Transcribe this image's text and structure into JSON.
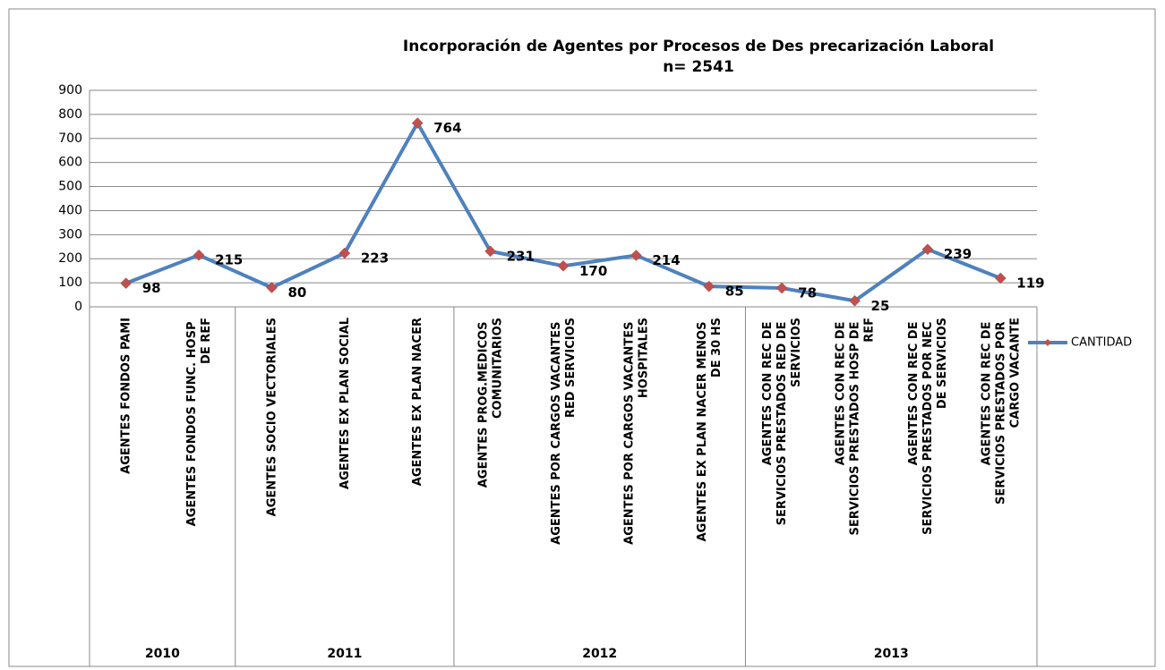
{
  "chart_data": {
    "type": "line",
    "title": "Incorporación de Agentes por Procesos de Des precarización Laboral",
    "subtitle": "n= 2541",
    "categories": [
      "AGENTES FONDOS PAMI",
      "AGENTES FONDOS FUNC. HOSP DE REF",
      "AGENTES SOCIO VECTORIALES",
      "AGENTES EX PLAN SOCIAL",
      "AGENTES EX PLAN NACER",
      "AGENTES PROG.MEDICOS COMUNITARIOS",
      "AGENTES POR CARGOS VACANTES RED SERVICIOS",
      "AGENTES POR CARGOS VACANTES HOSPITALES",
      "AGENTES EX PLAN NACER MENOS DE 30 HS",
      "AGENTES CON REC DE SERVICIOS PRESTADOS RED DE SERVICIOS",
      "AGENTES CON REC DE SERVICIOS PRESTADOS HOSP DE REF",
      "AGENTES CON REC DE SERVICIOS PRESTADOS POR NEC DE SERVICIOS",
      "AGENTES CON REC DE SERVICIOS PRESTADOS POR CARGO VACANTE"
    ],
    "category_groups": [
      "2010",
      "2010",
      "2011",
      "2011",
      "2011",
      "2012",
      "2012",
      "2012",
      "2012",
      "2013",
      "2013",
      "2013",
      "2013"
    ],
    "series": [
      {
        "name": "CANTIDAD",
        "color": "#4f81bd",
        "marker_color": "#c0504d",
        "values": [
          98,
          215,
          80,
          223,
          764,
          231,
          170,
          214,
          85,
          78,
          25,
          239,
          119
        ]
      }
    ],
    "ylim": [
      0,
      900
    ],
    "yticks": [
      0,
      100,
      200,
      300,
      400,
      500,
      600,
      700,
      800,
      900
    ],
    "grid": true,
    "legend": "right"
  }
}
